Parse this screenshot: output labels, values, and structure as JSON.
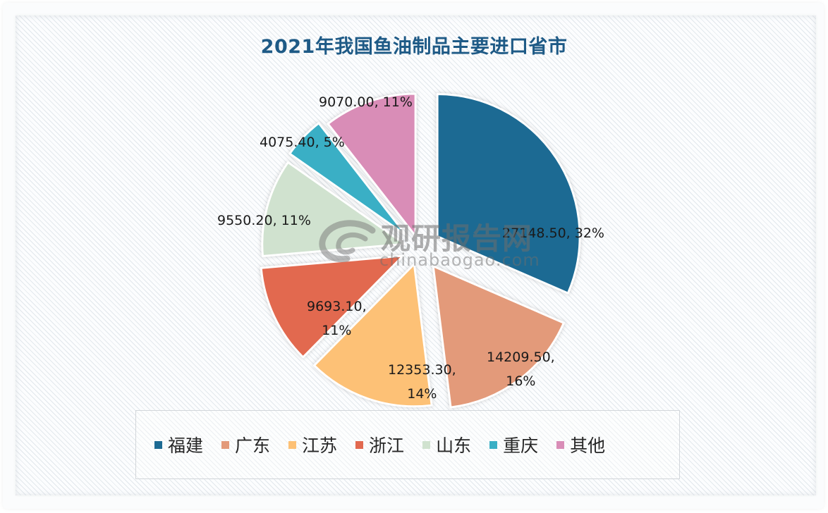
{
  "chart_data": {
    "type": "pie",
    "title": "2021年我国鱼油制品主要进口省市",
    "exploded": true,
    "start_angle_deg": 0,
    "direction": "clockwise",
    "legend_position": "bottom",
    "categories": [
      "福建",
      "广东",
      "江苏",
      "浙江",
      "山东",
      "重庆",
      "其他"
    ],
    "values": [
      27148.5,
      14209.5,
      12353.3,
      9693.1,
      9550.2,
      4075.4,
      9070.0
    ],
    "percentages": [
      32,
      16,
      14,
      11,
      11,
      5,
      11
    ],
    "colors": [
      "#1c6a93",
      "#e39a7a",
      "#fdc176",
      "#e2694f",
      "#d0e2cf",
      "#3aafc5",
      "#d98db7"
    ],
    "data_labels": [
      {
        "line1": "27148.50, 32%",
        "line2": ""
      },
      {
        "line1": "14209.50,",
        "line2": "16%"
      },
      {
        "line1": "12353.30,",
        "line2": "14%"
      },
      {
        "line1": "9693.10,",
        "line2": "11%"
      },
      {
        "line1": "9550.20, 11%",
        "line2": ""
      },
      {
        "line1": "4075.40, 5%",
        "line2": ""
      },
      {
        "line1": "9070.00, 11%",
        "line2": ""
      }
    ]
  },
  "watermark": {
    "cn": "观研报告网",
    "en": "chinabaogao.com"
  }
}
